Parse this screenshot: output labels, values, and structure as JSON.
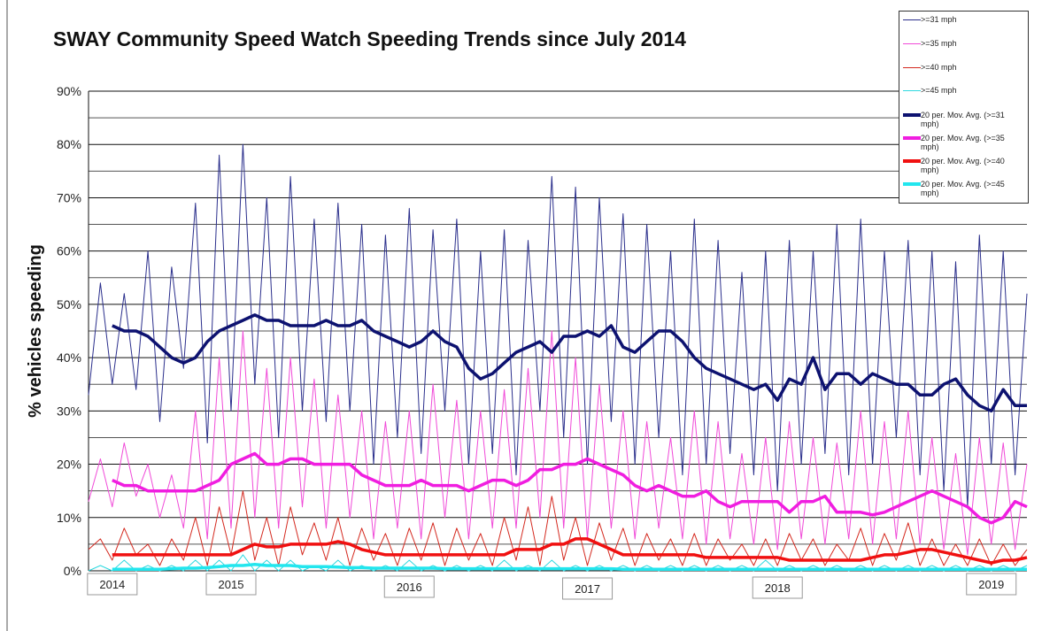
{
  "chart_data": {
    "type": "line",
    "title": "SWAY Community Speed Watch Speeding Trends since July 2014",
    "ylabel": "% vehicles speeding",
    "categories": [
      null,
      null,
      "2014",
      null,
      null,
      null,
      null,
      null,
      null,
      null,
      null,
      null,
      "2015",
      null,
      null,
      null,
      null,
      null,
      null,
      null,
      null,
      null,
      null,
      null,
      null,
      null,
      null,
      "2016",
      null,
      null,
      null,
      null,
      null,
      null,
      null,
      null,
      null,
      null,
      null,
      null,
      null,
      null,
      "2017",
      null,
      null,
      null,
      null,
      null,
      null,
      null,
      null,
      null,
      null,
      null,
      null,
      null,
      null,
      null,
      "2018",
      null,
      null,
      null,
      null,
      null,
      null,
      null,
      null,
      null,
      null,
      null,
      null,
      null,
      null,
      null,
      null,
      null,
      "2019",
      null,
      null,
      null
    ],
    "ylim": [
      0,
      90
    ],
    "yticks": [
      {
        "value": 0,
        "label": "0%"
      },
      {
        "value": 10,
        "label": "10%"
      },
      {
        "value": 20,
        "label": "20%"
      },
      {
        "value": 30,
        "label": "30%"
      },
      {
        "value": 40,
        "label": "40%"
      },
      {
        "value": 50,
        "label": "50%"
      },
      {
        "value": 60,
        "label": "60%"
      },
      {
        "value": 70,
        "label": "70%"
      },
      {
        "value": 80,
        "label": "80%"
      },
      {
        "value": 90,
        "label": "90%"
      }
    ],
    "minor_yticks": [
      5,
      15,
      25,
      35,
      45,
      55,
      65,
      75,
      85
    ],
    "grid": true,
    "legend": "upper right",
    "series": [
      {
        "name": ">=31 mph",
        "color": "#2b2f8c",
        "width": 1,
        "values": [
          33,
          54,
          35,
          52,
          34,
          60,
          28,
          57,
          38,
          69,
          24,
          78,
          30,
          80,
          35,
          70,
          25,
          74,
          30,
          66,
          28,
          69,
          30,
          65,
          20,
          63,
          25,
          68,
          22,
          64,
          30,
          66,
          20,
          60,
          22,
          64,
          18,
          62,
          30,
          74,
          25,
          72,
          20,
          70,
          28,
          67,
          20,
          65,
          25,
          60,
          18,
          66,
          20,
          62,
          22,
          56,
          18,
          60,
          15,
          62,
          20,
          60,
          22,
          65,
          18,
          66,
          20,
          60,
          25,
          62,
          18,
          60,
          15,
          58,
          12,
          63,
          20,
          60,
          18,
          52
        ]
      },
      {
        "name": ">=35 mph",
        "color": "#f04ad8",
        "width": 1,
        "values": [
          13,
          21,
          12,
          24,
          14,
          20,
          10,
          18,
          8,
          30,
          6,
          40,
          8,
          45,
          10,
          38,
          8,
          40,
          12,
          36,
          8,
          33,
          10,
          30,
          6,
          28,
          8,
          30,
          6,
          35,
          10,
          32,
          6,
          30,
          8,
          34,
          8,
          38,
          10,
          45,
          8,
          40,
          6,
          35,
          8,
          30,
          6,
          28,
          8,
          25,
          6,
          30,
          5,
          28,
          6,
          22,
          5,
          25,
          4,
          28,
          6,
          25,
          5,
          24,
          6,
          30,
          5,
          28,
          6,
          30,
          5,
          25,
          4,
          22,
          3,
          25,
          5,
          24,
          4,
          20
        ]
      },
      {
        "name": ">=40 mph",
        "color": "#d4291f",
        "width": 1,
        "values": [
          4,
          6,
          2,
          8,
          3,
          5,
          1,
          6,
          2,
          10,
          1,
          12,
          3,
          15,
          2,
          10,
          1,
          12,
          3,
          9,
          2,
          10,
          1,
          8,
          2,
          7,
          1,
          8,
          2,
          9,
          1,
          8,
          2,
          7,
          1,
          10,
          2,
          12,
          1,
          14,
          2,
          10,
          1,
          9,
          2,
          8,
          1,
          7,
          2,
          6,
          1,
          7,
          1,
          6,
          2,
          5,
          1,
          6,
          1,
          7,
          2,
          6,
          1,
          5,
          2,
          8,
          1,
          7,
          2,
          9,
          1,
          6,
          1,
          5,
          1,
          6,
          1,
          5,
          1,
          4
        ]
      },
      {
        "name": ">=45 mph",
        "color": "#2fd9e0",
        "width": 1,
        "values": [
          0,
          1,
          0,
          2,
          0,
          1,
          0,
          1,
          0,
          2,
          0,
          2,
          0,
          3,
          0,
          2,
          0,
          2,
          0,
          1,
          0,
          2,
          0,
          1,
          0,
          1,
          0,
          2,
          0,
          1,
          0,
          1,
          0,
          1,
          0,
          2,
          0,
          1,
          0,
          2,
          0,
          1,
          0,
          1,
          0,
          1,
          0,
          1,
          0,
          1,
          0,
          1,
          0,
          1,
          0,
          1,
          0,
          2,
          0,
          1,
          0,
          1,
          0,
          1,
          0,
          1,
          0,
          1,
          0,
          1,
          0,
          1,
          0,
          1,
          0,
          1,
          0,
          1,
          0,
          1
        ]
      },
      {
        "name": "20 per. Mov. Avg. (>=31 mph)",
        "color": "#0d1270",
        "width": 3.5,
        "values": [
          null,
          null,
          46,
          45,
          45,
          44,
          42,
          40,
          39,
          40,
          43,
          45,
          46,
          47,
          48,
          47,
          47,
          46,
          46,
          46,
          47,
          46,
          46,
          47,
          45,
          44,
          43,
          42,
          43,
          45,
          43,
          42,
          38,
          36,
          37,
          39,
          41,
          42,
          43,
          41,
          44,
          44,
          45,
          44,
          46,
          42,
          41,
          43,
          45,
          45,
          43,
          40,
          38,
          37,
          36,
          35,
          34,
          35,
          32,
          36,
          35,
          40,
          34,
          37,
          37,
          35,
          37,
          36,
          35,
          35,
          33,
          33,
          35,
          36,
          33,
          31,
          30,
          34,
          31,
          31
        ]
      },
      {
        "name": "20 per. Mov. Avg. (>=35 mph)",
        "color": "#f01ee0",
        "width": 3.5,
        "values": [
          null,
          null,
          17,
          16,
          16,
          15,
          15,
          15,
          15,
          15,
          16,
          17,
          20,
          21,
          22,
          20,
          20,
          21,
          21,
          20,
          20,
          20,
          20,
          18,
          17,
          16,
          16,
          16,
          17,
          16,
          16,
          16,
          15,
          16,
          17,
          17,
          16,
          17,
          19,
          19,
          20,
          20,
          21,
          20,
          19,
          18,
          16,
          15,
          16,
          15,
          14,
          14,
          15,
          13,
          12,
          13,
          13,
          13,
          13,
          11,
          13,
          13,
          14,
          11,
          11,
          11,
          10.5,
          11,
          12,
          13,
          14,
          15,
          14,
          13,
          12,
          10,
          9,
          10,
          13,
          12
        ]
      },
      {
        "name": "20 per. Mov. Avg. (>=40 mph)",
        "color": "#f01010",
        "width": 3.5,
        "values": [
          null,
          null,
          3,
          3,
          3,
          3,
          3,
          3,
          3,
          3,
          3,
          3,
          3,
          4,
          5,
          4.5,
          4.5,
          5,
          5,
          5,
          5,
          5.5,
          5,
          4,
          3.5,
          3,
          3,
          3,
          3,
          3,
          3,
          3,
          3,
          3,
          3,
          3,
          4,
          4,
          4,
          5,
          5,
          6,
          6,
          5,
          4,
          3,
          3,
          3,
          3,
          3,
          3,
          3,
          2.5,
          2.5,
          2.5,
          2.5,
          2.5,
          2.5,
          2.5,
          2,
          2,
          2,
          2,
          2,
          2,
          2,
          2.5,
          3,
          3,
          3.5,
          4,
          4,
          3.5,
          3,
          2.5,
          2,
          1.5,
          2,
          2,
          2.5
        ]
      },
      {
        "name": "20 per. Mov. Avg. (>=45 mph)",
        "color": "#22e6ee",
        "width": 3.5,
        "values": [
          null,
          null,
          0.3,
          0.3,
          0.3,
          0.3,
          0.3,
          0.4,
          0.5,
          0.5,
          0.6,
          0.8,
          1,
          1,
          1.2,
          1,
          1,
          1,
          0.8,
          0.8,
          0.8,
          0.7,
          0.6,
          0.6,
          0.5,
          0.5,
          0.5,
          0.5,
          0.5,
          0.5,
          0.4,
          0.4,
          0.4,
          0.4,
          0.4,
          0.4,
          0.4,
          0.4,
          0.4,
          0.4,
          0.4,
          0.4,
          0.4,
          0.4,
          0.4,
          0.3,
          0.3,
          0.3,
          0.3,
          0.3,
          0.3,
          0.3,
          0.3,
          0.3,
          0.3,
          0.3,
          0.3,
          0.3,
          0.3,
          0.3,
          0.3,
          0.3,
          0.3,
          0.3,
          0.3,
          0.3,
          0.3,
          0.3,
          0.3,
          0.3,
          0.3,
          0.3,
          0.3,
          0.3,
          0.3,
          0.3,
          0.3,
          0.3,
          0.3,
          0.3
        ]
      }
    ]
  }
}
